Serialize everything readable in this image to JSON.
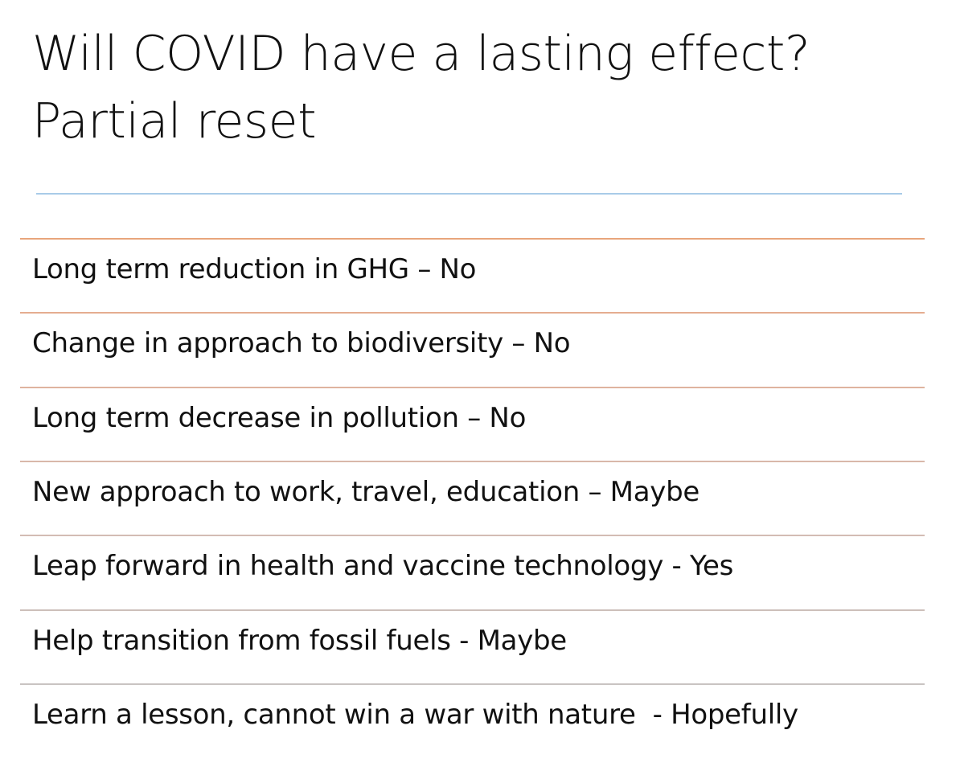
{
  "title": {
    "lines": [
      "Will COVID have a lasting effect?",
      "Partial reset"
    ]
  },
  "items": [
    "Long term reduction in GHG – No",
    "Change in approach to biodiversity – No",
    "Long term decrease in pollution – No",
    "New approach to work, travel, education – Maybe",
    "Leap forward in health and vaccine technology - Yes",
    "Help transition from fossil fuels - Maybe",
    "Learn a lesson, cannot win a war with nature  - Hopefully"
  ]
}
